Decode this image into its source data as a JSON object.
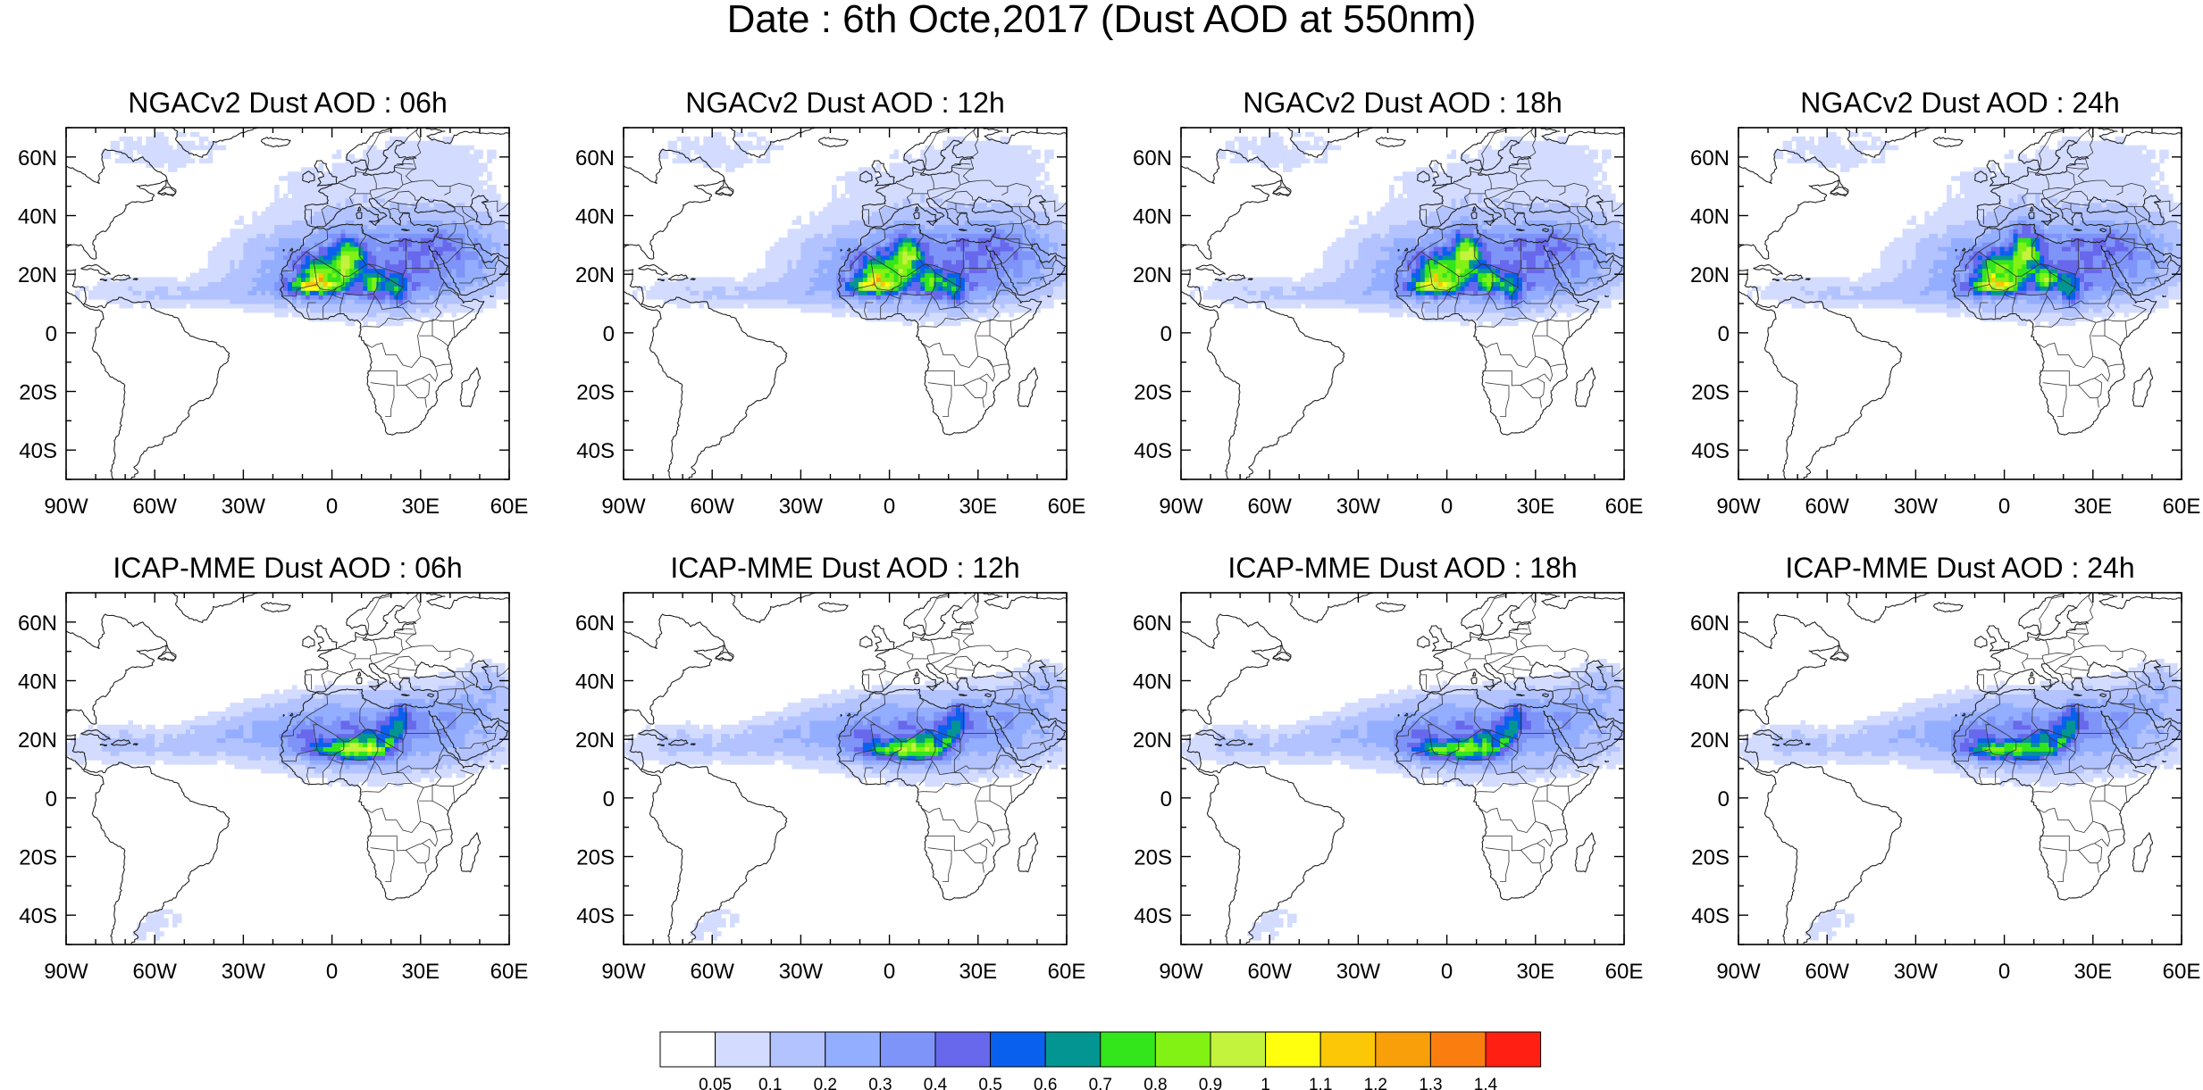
{
  "title": "Date : 6th Octe,2017 (Dust AOD at 550nm)",
  "panels": [
    {
      "title": "NGACv2 Dust AOD : 06h",
      "model": "ngac",
      "hour": 6
    },
    {
      "title": "NGACv2 Dust AOD : 12h",
      "model": "ngac",
      "hour": 12
    },
    {
      "title": "NGACv2 Dust AOD : 18h",
      "model": "ngac",
      "hour": 18
    },
    {
      "title": "NGACv2 Dust AOD : 24h",
      "model": "ngac",
      "hour": 24
    },
    {
      "title": "ICAP-MME Dust AOD : 06h",
      "model": "icap",
      "hour": 6
    },
    {
      "title": "ICAP-MME Dust AOD : 12h",
      "model": "icap",
      "hour": 12
    },
    {
      "title": "ICAP-MME Dust AOD : 18h",
      "model": "icap",
      "hour": 18
    },
    {
      "title": "ICAP-MME Dust AOD : 24h",
      "model": "icap",
      "hour": 24
    }
  ],
  "map_extent": {
    "lon_min": -90,
    "lon_max": 60,
    "lat_min": -50,
    "lat_max": 70
  },
  "lon_ticks": [
    {
      "value": -90,
      "label": "90W"
    },
    {
      "value": -60,
      "label": "60W"
    },
    {
      "value": -30,
      "label": "30W"
    },
    {
      "value": 0,
      "label": "0"
    },
    {
      "value": 30,
      "label": "30E"
    },
    {
      "value": 60,
      "label": "60E"
    }
  ],
  "lat_ticks": [
    {
      "value": 60,
      "label": "60N"
    },
    {
      "value": 40,
      "label": "40N"
    },
    {
      "value": 20,
      "label": "20N"
    },
    {
      "value": 0,
      "label": "0"
    },
    {
      "value": -20,
      "label": "20S"
    },
    {
      "value": -40,
      "label": "40S"
    }
  ],
  "colorbar": {
    "colors": [
      "#ffffff",
      "#d3dcff",
      "#b3c3ff",
      "#94aeff",
      "#7f94f8",
      "#6868ec",
      "#0a60ee",
      "#039591",
      "#33e61c",
      "#82f114",
      "#c3f33d",
      "#ffff0e",
      "#fbc706",
      "#f89f09",
      "#fa7e0f",
      "#ff1f13"
    ],
    "labels": [
      "0.05",
      "0.1",
      "0.2",
      "0.3",
      "0.4",
      "0.5",
      "0.6",
      "0.7",
      "0.8",
      "0.9",
      "1",
      "1.1",
      "1.2",
      "1.3",
      "1.4"
    ]
  }
}
